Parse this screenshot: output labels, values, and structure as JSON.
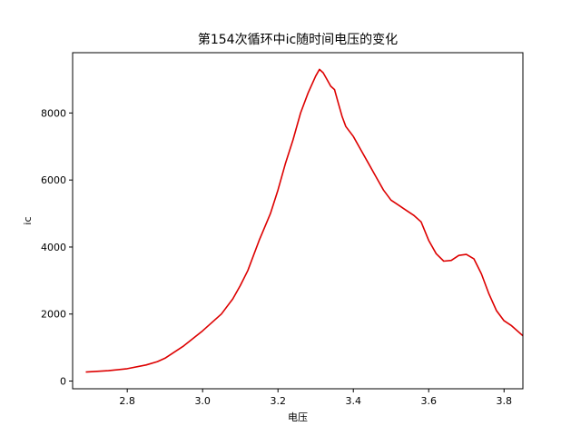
{
  "chart_data": {
    "type": "line",
    "title": "第154次循环中ic随时间电压的变化",
    "xlabel": "电压",
    "ylabel": "ic",
    "xlim": [
      2.655,
      3.85
    ],
    "ylim": [
      -230,
      9800
    ],
    "xticks": [
      2.8,
      3.0,
      3.2,
      3.4,
      3.6,
      3.8
    ],
    "xtick_labels": [
      "2.8",
      "3.0",
      "3.2",
      "3.4",
      "3.6",
      "3.8"
    ],
    "yticks": [
      0,
      2000,
      4000,
      6000,
      8000
    ],
    "ytick_labels": [
      "0",
      "2000",
      "4000",
      "6000",
      "8000"
    ],
    "grid": false,
    "color": "#dd0000",
    "series": [
      {
        "x": [
          2.69,
          2.75,
          2.8,
          2.85,
          2.88,
          2.9,
          2.95,
          3.0,
          3.05,
          3.08,
          3.1,
          3.12,
          3.15,
          3.18,
          3.2,
          3.22,
          3.24,
          3.26,
          3.28,
          3.3,
          3.31,
          3.32,
          3.33,
          3.34,
          3.35,
          3.36,
          3.37,
          3.38,
          3.4,
          3.42,
          3.44,
          3.46,
          3.48,
          3.5,
          3.52,
          3.54,
          3.56,
          3.58,
          3.6,
          3.62,
          3.64,
          3.66,
          3.68,
          3.7,
          3.72,
          3.74,
          3.76,
          3.78,
          3.8,
          3.82,
          3.85
        ],
        "y": [
          270,
          310,
          370,
          480,
          580,
          680,
          1050,
          1500,
          2000,
          2450,
          2850,
          3300,
          4200,
          5000,
          5700,
          6500,
          7200,
          8000,
          8600,
          9100,
          9300,
          9200,
          9000,
          8800,
          8700,
          8300,
          7900,
          7600,
          7300,
          6900,
          6500,
          6100,
          5700,
          5400,
          5250,
          5100,
          4950,
          4750,
          4200,
          3800,
          3580,
          3600,
          3750,
          3780,
          3650,
          3200,
          2600,
          2100,
          1800,
          1650,
          1350
        ]
      }
    ]
  }
}
